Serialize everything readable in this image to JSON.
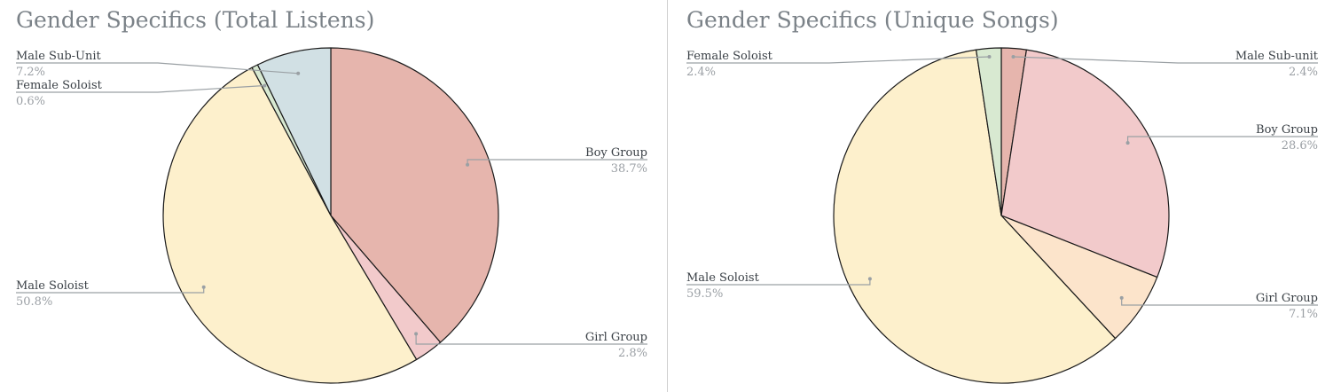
{
  "chart_data": [
    {
      "type": "pie",
      "title": "Gender Specifics (Total Listens)",
      "slices": [
        {
          "label": "Boy Group",
          "value": 38.7,
          "display": "38.7%",
          "color": "#e6b5ad"
        },
        {
          "label": "Girl Group",
          "value": 2.8,
          "display": "2.8%",
          "color": "#f2cacb"
        },
        {
          "label": "Male Soloist",
          "value": 50.8,
          "display": "50.8%",
          "color": "#fdf0cc"
        },
        {
          "label": "Female Soloist",
          "value": 0.6,
          "display": "0.6%",
          "color": "#d8e9d1"
        },
        {
          "label": "Male Sub-Unit",
          "value": 7.2,
          "display": "7.2%",
          "color": "#d1e0e4"
        }
      ],
      "legend": "leader-line labels"
    },
    {
      "type": "pie",
      "title": "Gender Specifics (Unique Songs)",
      "slices": [
        {
          "label": "Male Sub-unit",
          "value": 2.4,
          "display": "2.4%",
          "color": "#e6b5ad"
        },
        {
          "label": "Boy Group",
          "value": 28.6,
          "display": "28.6%",
          "color": "#f2cacb"
        },
        {
          "label": "Girl Group",
          "value": 7.1,
          "display": "7.1%",
          "color": "#fce4cb"
        },
        {
          "label": "Male Soloist",
          "value": 59.5,
          "display": "59.5%",
          "color": "#fdf0cc"
        },
        {
          "label": "Female Soloist",
          "value": 2.4,
          "display": "2.4%",
          "color": "#d8e9d1"
        }
      ],
      "legend": "leader-line labels"
    }
  ],
  "colors": {
    "title": "#7b8288",
    "label_name": "#3a4046",
    "label_value": "#9a9fa4",
    "leader_line": "#9aa0a4",
    "slice_border": "#1a1a1a"
  }
}
